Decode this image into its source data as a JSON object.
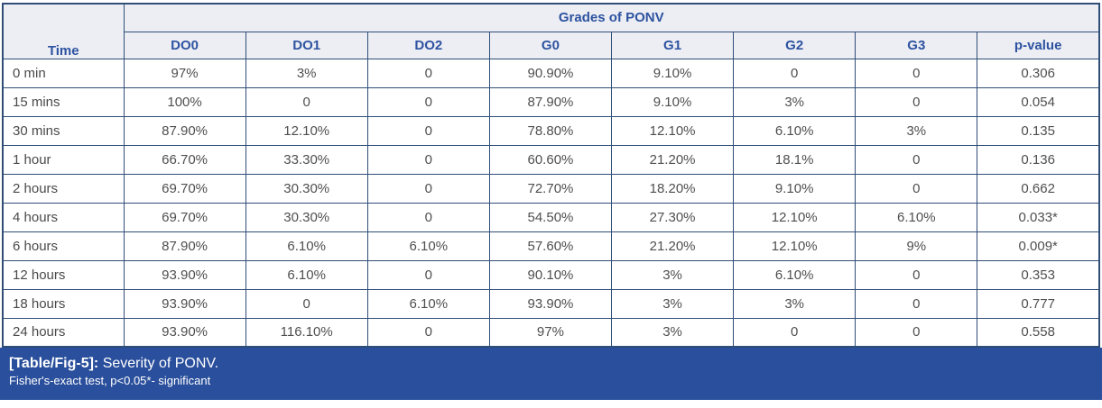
{
  "table": {
    "group_header": "Grades of PONV",
    "columns": [
      "Time",
      "DO0",
      "DO1",
      "DO2",
      "G0",
      "G1",
      "G2",
      "G3",
      "p-value"
    ],
    "rows": [
      {
        "time": "0 min",
        "values": [
          "97%",
          "3%",
          "0",
          "90.90%",
          "9.10%",
          "0",
          "0",
          "0.306"
        ]
      },
      {
        "time": "15 mins",
        "values": [
          "100%",
          "0",
          "0",
          "87.90%",
          "9.10%",
          "3%",
          "0",
          "0.054"
        ]
      },
      {
        "time": "30 mins",
        "values": [
          "87.90%",
          "12.10%",
          "0",
          "78.80%",
          "12.10%",
          "6.10%",
          "3%",
          "0.135"
        ]
      },
      {
        "time": "1 hour",
        "values": [
          "66.70%",
          "33.30%",
          "0",
          "60.60%",
          "21.20%",
          "18.1%",
          "0",
          "0.136"
        ]
      },
      {
        "time": "2 hours",
        "values": [
          "69.70%",
          "30.30%",
          "0",
          "72.70%",
          "18.20%",
          "9.10%",
          "0",
          "0.662"
        ]
      },
      {
        "time": "4 hours",
        "values": [
          "69.70%",
          "30.30%",
          "0",
          "54.50%",
          "27.30%",
          "12.10%",
          "6.10%",
          "0.033*"
        ]
      },
      {
        "time": "6 hours",
        "values": [
          "87.90%",
          "6.10%",
          "6.10%",
          "57.60%",
          "21.20%",
          "12.10%",
          "9%",
          "0.009*"
        ]
      },
      {
        "time": "12 hours",
        "values": [
          "93.90%",
          "6.10%",
          "0",
          "90.10%",
          "3%",
          "6.10%",
          "0",
          "0.353"
        ]
      },
      {
        "time": "18 hours",
        "values": [
          "93.90%",
          "0",
          "6.10%",
          "93.90%",
          "3%",
          "3%",
          "0",
          "0.777"
        ]
      },
      {
        "time": "24 hours",
        "values": [
          "93.90%",
          "116.10%",
          "0",
          "97%",
          "3%",
          "0",
          "0",
          "0.558"
        ]
      }
    ]
  },
  "caption": {
    "label": "[Table/Fig-5]:",
    "title": "Severity of PONV.",
    "note": "Fisher's-exact test, p<0.05*- significant"
  },
  "chart_data": {
    "type": "table",
    "title": "Severity of PONV",
    "columns": [
      "Time",
      "DO0",
      "DO1",
      "DO2",
      "G0",
      "G1",
      "G2",
      "G3",
      "p-value"
    ],
    "group_header": "Grades of PONV",
    "rows": [
      [
        "0 min",
        "97%",
        "3%",
        "0",
        "90.90%",
        "9.10%",
        "0",
        "0",
        "0.306"
      ],
      [
        "15 mins",
        "100%",
        "0",
        "0",
        "87.90%",
        "9.10%",
        "3%",
        "0",
        "0.054"
      ],
      [
        "30 mins",
        "87.90%",
        "12.10%",
        "0",
        "78.80%",
        "12.10%",
        "6.10%",
        "3%",
        "0.135"
      ],
      [
        "1 hour",
        "66.70%",
        "33.30%",
        "0",
        "60.60%",
        "21.20%",
        "18.1%",
        "0",
        "0.136"
      ],
      [
        "2 hours",
        "69.70%",
        "30.30%",
        "0",
        "72.70%",
        "18.20%",
        "9.10%",
        "0",
        "0.662"
      ],
      [
        "4 hours",
        "69.70%",
        "30.30%",
        "0",
        "54.50%",
        "27.30%",
        "12.10%",
        "6.10%",
        "0.033*"
      ],
      [
        "6 hours",
        "87.90%",
        "6.10%",
        "6.10%",
        "57.60%",
        "21.20%",
        "12.10%",
        "9%",
        "0.009*"
      ],
      [
        "12 hours",
        "93.90%",
        "6.10%",
        "0",
        "90.10%",
        "3%",
        "6.10%",
        "0",
        "0.353"
      ],
      [
        "18 hours",
        "93.90%",
        "0",
        "6.10%",
        "93.90%",
        "3%",
        "3%",
        "0",
        "0.777"
      ],
      [
        "24 hours",
        "93.90%",
        "116.10%",
        "0",
        "97%",
        "3%",
        "0",
        "0",
        "0.558"
      ]
    ],
    "note": "Fisher's-exact test, p<0.05*- significant"
  },
  "colors": {
    "border": "#2f4d77",
    "header_bg": "#edeef4",
    "header_text": "#2d53a0",
    "body_text": "#4f4f4f",
    "caption_bg": "#2a4f9c",
    "caption_text": "#ffffff"
  }
}
